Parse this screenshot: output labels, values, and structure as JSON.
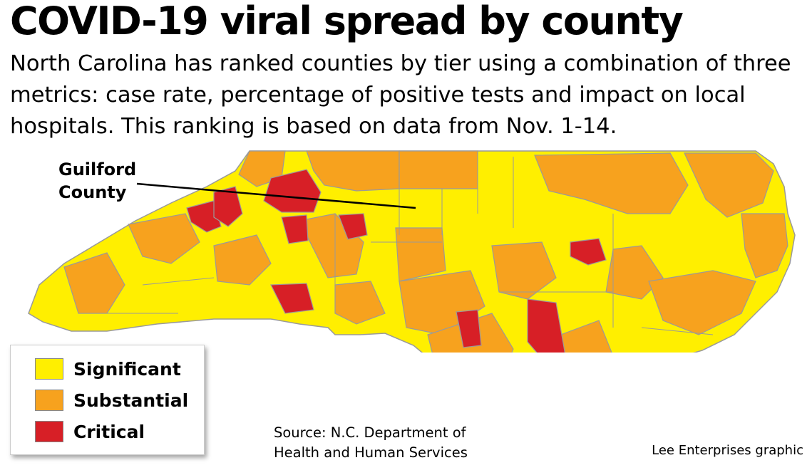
{
  "title": "COVID-19 viral spread by county",
  "subtitle": "North Carolina has ranked counties by tier using a combination of three metrics: case rate, percentage of positive tests and impact on local hospitals. This ranking is based on data from Nov. 1-14.",
  "callout": {
    "line1": "Guilford",
    "line2": "County"
  },
  "colors": {
    "significant": "#ffef00",
    "substantial": "#f7a21e",
    "critical": "#d71f26",
    "border": "#9a9a9a"
  },
  "legend": {
    "items": [
      {
        "label": "Significant",
        "color": "#ffef00"
      },
      {
        "label": "Substantial",
        "color": "#f7a21e"
      },
      {
        "label": "Critical",
        "color": "#d71f26"
      }
    ]
  },
  "source": {
    "line1": "Source: N.C. Department of",
    "line2": "Health and Human Services"
  },
  "credit": "Lee Enterprises graphic"
}
